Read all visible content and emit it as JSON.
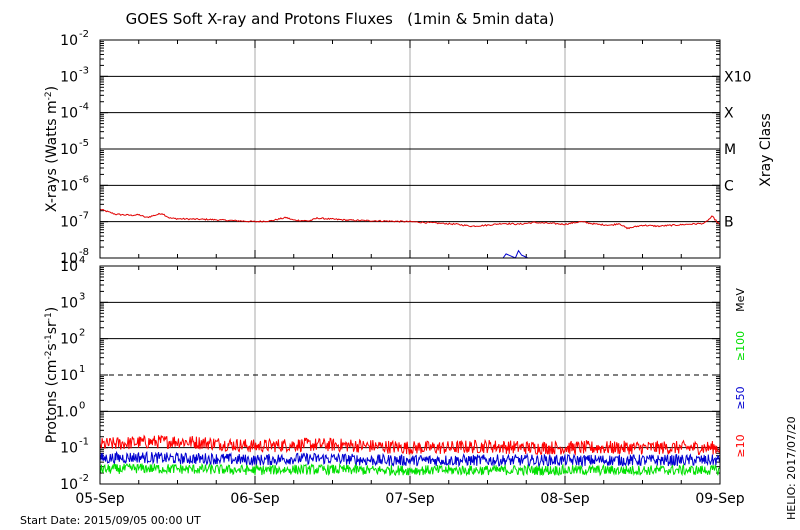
{
  "chart_data": [
    {
      "type": "line",
      "title": "GOES Soft X-ray and Protons Fluxes   (1min & 5min data)",
      "xlabel": "",
      "ylabel": "X-rays (Watts m^-2)",
      "ylabel_parts": [
        "X-rays (Watts m",
        "-2",
        ")"
      ],
      "yscale": "log",
      "ylim": [
        1e-08,
        0.01
      ],
      "xlim": [
        0,
        4
      ],
      "x_ticks": [
        "05-Sep",
        "06-Sep",
        "07-Sep",
        "08-Sep",
        "09-Sep"
      ],
      "y_ticks": [
        {
          "base": "10",
          "exp": "-2"
        },
        {
          "base": "10",
          "exp": "-3"
        },
        {
          "base": "10",
          "exp": "-4"
        },
        {
          "base": "10",
          "exp": "-5"
        },
        {
          "base": "10",
          "exp": "-6"
        },
        {
          "base": "10",
          "exp": "-7"
        },
        {
          "base": "10",
          "exp": "-8"
        }
      ],
      "right_axis_label": "Xray Class",
      "classes": [
        {
          "label": "X10",
          "y": 0.001
        },
        {
          "label": "X",
          "y": 0.0001
        },
        {
          "label": "M",
          "y": 1e-05
        },
        {
          "label": "C",
          "y": 1e-06
        },
        {
          "label": "B",
          "y": 1e-07
        }
      ],
      "grid": true,
      "series": [
        {
          "color": "#e00000",
          "x": [
            0,
            0.1,
            0.2,
            0.25,
            0.3,
            0.4,
            0.45,
            0.5,
            0.7,
            0.9,
            1.0,
            1.1,
            1.2,
            1.25,
            1.35,
            1.4,
            1.6,
            1.8,
            2.0,
            2.1,
            2.2,
            2.3,
            2.4,
            2.5,
            2.6,
            2.7,
            2.8,
            2.9,
            3.0,
            3.1,
            3.2,
            3.3,
            3.35,
            3.4,
            3.5,
            3.6,
            3.7,
            3.8,
            3.9,
            3.95,
            4.0
          ],
          "y": [
            2.2e-07,
            1.6e-07,
            1.5e-07,
            1.55e-07,
            1.3e-07,
            1.7e-07,
            1.25e-07,
            1.2e-07,
            1.15e-07,
            1.05e-07,
            1e-07,
            1.05e-07,
            1.3e-07,
            1.1e-07,
            1.05e-07,
            1.25e-07,
            1.1e-07,
            1.05e-07,
            1e-07,
            9.5e-08,
            9e-08,
            8.5e-08,
            7.5e-08,
            8e-08,
            9e-08,
            8.5e-08,
            9.5e-08,
            9e-08,
            8.5e-08,
            1e-07,
            8.5e-08,
            8e-08,
            9e-08,
            6.5e-08,
            8e-08,
            7.5e-08,
            8e-08,
            8.5e-08,
            9e-08,
            1.4e-07,
            8e-08
          ]
        },
        {
          "color": "#0000d0",
          "x": [
            2.6,
            2.62,
            2.68,
            2.7,
            2.72,
            2.74,
            2.76
          ],
          "y": [
            1e-08,
            1.3e-08,
            1e-08,
            1.6e-08,
            1.2e-08,
            1.1e-08,
            1e-08
          ]
        }
      ]
    },
    {
      "type": "line",
      "xlabel": "",
      "ylabel": "Protons (cm^-2 s^-1 sr^-1)",
      "ylabel_parts": [
        "Protons (cm",
        "-2",
        "s",
        "-1",
        "sr",
        "-1",
        ")"
      ],
      "yscale": "log",
      "ylim": [
        0.01,
        10000
      ],
      "xlim": [
        0,
        4
      ],
      "x_ticks": [
        "05-Sep",
        "06-Sep",
        "07-Sep",
        "08-Sep",
        "09-Sep"
      ],
      "y_ticks": [
        {
          "base": "10",
          "exp": "4"
        },
        {
          "base": "10",
          "exp": "3"
        },
        {
          "base": "10",
          "exp": "2"
        },
        {
          "base": "10",
          "exp": "1"
        },
        {
          "base": "1.0",
          "exp": "0"
        },
        {
          "base": "10",
          "exp": "-1"
        },
        {
          "base": "10",
          "exp": "-2"
        }
      ],
      "reference_line": 10,
      "energy_unit": "MeV",
      "grid": true,
      "series": [
        {
          "name": "≥10",
          "color": "#ff0000",
          "x": [
            0,
            0.25,
            0.5,
            0.75,
            1.0,
            1.25,
            1.5,
            1.75,
            2.0,
            2.25,
            2.5,
            2.75,
            3.0,
            3.25,
            3.5,
            3.75,
            4.0
          ],
          "y": [
            0.12,
            0.14,
            0.15,
            0.13,
            0.11,
            0.12,
            0.12,
            0.11,
            0.1,
            0.1,
            0.11,
            0.1,
            0.1,
            0.1,
            0.1,
            0.1,
            0.1
          ]
        },
        {
          "name": "≥50",
          "color": "#0000d0",
          "x": [
            0,
            0.25,
            0.5,
            0.75,
            1.0,
            1.25,
            1.5,
            1.75,
            2.0,
            2.25,
            2.5,
            2.75,
            3.0,
            3.25,
            3.5,
            3.75,
            4.0
          ],
          "y": [
            0.05,
            0.055,
            0.05,
            0.05,
            0.045,
            0.05,
            0.05,
            0.045,
            0.045,
            0.045,
            0.045,
            0.045,
            0.045,
            0.045,
            0.045,
            0.045,
            0.045
          ]
        },
        {
          "name": "≥100",
          "color": "#00e000",
          "x": [
            0,
            0.25,
            0.5,
            0.75,
            1.0,
            1.25,
            1.5,
            1.75,
            2.0,
            2.25,
            2.5,
            2.75,
            3.0,
            3.25,
            3.5,
            3.75,
            4.0
          ],
          "y": [
            0.025,
            0.027,
            0.026,
            0.025,
            0.024,
            0.025,
            0.025,
            0.024,
            0.024,
            0.024,
            0.024,
            0.024,
            0.024,
            0.024,
            0.024,
            0.024,
            0.024
          ]
        }
      ]
    }
  ],
  "footer": {
    "start_date": "Start Date: 2015/09/05 00:00 UT",
    "credit": "HELIO: 2017/07/20"
  }
}
